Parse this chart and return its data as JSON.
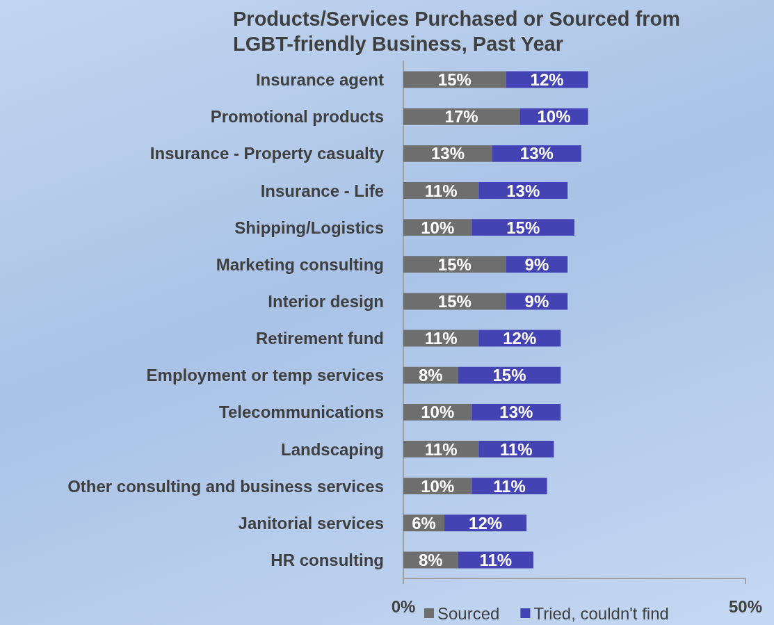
{
  "chart_data": {
    "type": "bar",
    "orientation": "horizontal",
    "stacked": true,
    "title": "Products/Services Purchased or Sourced from LGBT-friendly Business, Past Year",
    "categories": [
      "Insurance agent",
      "Promotional products",
      "Insurance - Property casualty",
      "Insurance - Life",
      "Shipping/Logistics",
      "Marketing consulting",
      "Interior design",
      "Retirement fund",
      "Employment or temp services",
      "Telecommunications",
      "Landscaping",
      "Other consulting and business services",
      "Janitorial services",
      "HR consulting"
    ],
    "series": [
      {
        "name": "Sourced",
        "color": "#6e6e6e",
        "values": [
          15,
          17,
          13,
          11,
          10,
          15,
          15,
          11,
          8,
          10,
          11,
          10,
          6,
          8
        ],
        "value_labels": [
          "15%",
          "17%",
          "13%",
          "11%",
          "10%",
          "15%",
          "15%",
          "11%",
          "8%",
          "10%",
          "11%",
          "10%",
          "6%",
          "8%"
        ]
      },
      {
        "name": "Tried, couldn't find",
        "color": "#4343b3",
        "values": [
          12,
          10,
          13,
          13,
          15,
          9,
          9,
          12,
          15,
          13,
          11,
          11,
          12,
          11
        ],
        "value_labels": [
          "12%",
          "10%",
          "13%",
          "13%",
          "15%",
          "9%",
          "9%",
          "12%",
          "15%",
          "13%",
          "11%",
          "11%",
          "12%",
          "11%"
        ]
      }
    ],
    "xlim": [
      0,
      50
    ],
    "xticks": [
      {
        "value": 0,
        "label": "0%"
      },
      {
        "value": 50,
        "label": "50%"
      }
    ],
    "grid": false,
    "legend": "bottom"
  }
}
